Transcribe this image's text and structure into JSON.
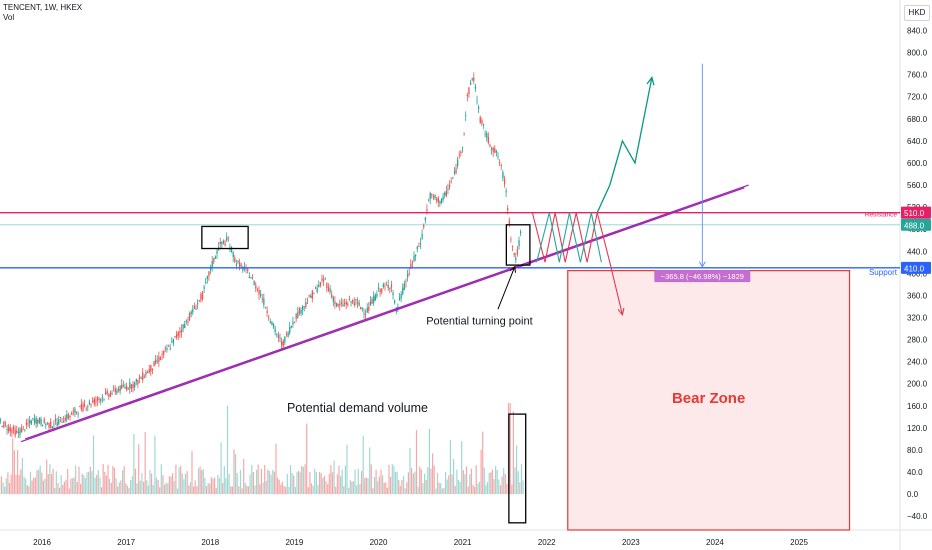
{
  "header": {
    "symbol_line": "TENCENT, 1W, HKEX",
    "sub_line": "Vol"
  },
  "currency": "HKD",
  "chart_data": {
    "type": "candlestick",
    "symbol": "TENCENT",
    "interval": "1W",
    "exchange": "HKEX",
    "x": {
      "range": [
        2015.5,
        2026.2
      ],
      "tick_labels": [
        "2016",
        "2017",
        "2018",
        "2019",
        "2020",
        "2021",
        "2022",
        "2023",
        "2024",
        "2025"
      ],
      "tick_values": [
        2016,
        2017,
        2018,
        2019,
        2020,
        2021,
        2022,
        2023,
        2024,
        2025
      ]
    },
    "y": {
      "range": [
        -65,
        850
      ],
      "tick_values": [
        -40,
        0,
        40,
        80,
        120,
        160,
        200,
        240,
        280,
        320,
        360,
        400,
        440,
        480,
        520,
        560,
        600,
        640,
        680,
        720,
        760,
        800,
        840
      ],
      "tick_labels": [
        "−40.0",
        "0.0",
        "40.0",
        "80.0",
        "120.0",
        "160.0",
        "200.0",
        "240.0",
        "280.0",
        "320.0",
        "360.0",
        "400.0",
        "440.0",
        "480.0",
        "520.0",
        "560.0",
        "600.0",
        "640.0",
        "680.0",
        "720.0",
        "760.0",
        "800.0",
        "840.0"
      ]
    },
    "price_path": [
      [
        2015.5,
        130
      ],
      [
        2015.7,
        110
      ],
      [
        2015.9,
        135
      ],
      [
        2016.1,
        125
      ],
      [
        2016.3,
        140
      ],
      [
        2016.5,
        160
      ],
      [
        2016.7,
        175
      ],
      [
        2016.9,
        190
      ],
      [
        2017.1,
        200
      ],
      [
        2017.3,
        230
      ],
      [
        2017.5,
        265
      ],
      [
        2017.7,
        310
      ],
      [
        2017.9,
        360
      ],
      [
        2018.0,
        410
      ],
      [
        2018.1,
        450
      ],
      [
        2018.2,
        460
      ],
      [
        2018.3,
        420
      ],
      [
        2018.45,
        400
      ],
      [
        2018.6,
        360
      ],
      [
        2018.75,
        300
      ],
      [
        2018.85,
        270
      ],
      [
        2019.0,
        320
      ],
      [
        2019.2,
        360
      ],
      [
        2019.35,
        390
      ],
      [
        2019.5,
        340
      ],
      [
        2019.7,
        350
      ],
      [
        2019.85,
        330
      ],
      [
        2020.0,
        370
      ],
      [
        2020.15,
        380
      ],
      [
        2020.2,
        330
      ],
      [
        2020.35,
        400
      ],
      [
        2020.5,
        460
      ],
      [
        2020.6,
        540
      ],
      [
        2020.75,
        530
      ],
      [
        2020.9,
        580
      ],
      [
        2021.0,
        640
      ],
      [
        2021.05,
        720
      ],
      [
        2021.12,
        760
      ],
      [
        2021.2,
        680
      ],
      [
        2021.3,
        640
      ],
      [
        2021.42,
        610
      ],
      [
        2021.5,
        560
      ],
      [
        2021.58,
        450
      ],
      [
        2021.63,
        425
      ],
      [
        2021.68,
        470
      ]
    ],
    "volume": {
      "note": "volume bars drawn in lower pane, baseline at 0",
      "spikes": [
        [
          2018.2,
          160
        ],
        [
          2021.55,
          165
        ],
        [
          2021.6,
          150
        ]
      ]
    },
    "horizontal_levels": [
      {
        "name": "Resistance",
        "value": 510.0,
        "color": "#e91e63",
        "price_label": "510.0"
      },
      {
        "name": "",
        "value": 488.0,
        "color": "#26a69a",
        "price_label": "488.0"
      },
      {
        "name": "Support",
        "value": 410.0,
        "color": "#2962ff",
        "price_label": "410.0"
      }
    ],
    "trendlines": [
      {
        "points": [
          [
            2015.75,
            95
          ],
          [
            2024.35,
            555
          ]
        ],
        "color": "#9c27b0"
      },
      {
        "points": [
          [
            2015.8,
            100
          ],
          [
            2024.4,
            560
          ]
        ],
        "color": "#9c27b0"
      }
    ],
    "projection": {
      "zigzag": [
        [
          2021.83,
          510
        ],
        [
          2021.98,
          420
        ],
        [
          2022.1,
          510
        ],
        [
          2022.22,
          420
        ],
        [
          2022.35,
          510
        ],
        [
          2022.48,
          420
        ],
        [
          2022.6,
          510
        ]
      ],
      "bull_path": [
        [
          2022.6,
          510
        ],
        [
          2022.75,
          560
        ],
        [
          2022.9,
          640
        ],
        [
          2023.05,
          600
        ],
        [
          2023.25,
          755
        ]
      ],
      "bear_path": [
        [
          2022.6,
          510
        ],
        [
          2022.75,
          420
        ],
        [
          2022.9,
          325
        ]
      ]
    },
    "measure_label": "−365.8 (−46.98%) −1829",
    "measure_arrow": {
      "x": 2023.85,
      "y_from": 780,
      "y_to": 412
    },
    "bear_zone": {
      "label": "Bear Zone",
      "x_from": 2022.25,
      "x_to": 2025.6,
      "y_from": 405,
      "y_to": -65
    },
    "annotations": [
      {
        "text": "Potential turning point",
        "at": [
          2021.2,
          315
        ]
      },
      {
        "text": "Potential demand volume",
        "at": [
          2019.75,
          158
        ]
      }
    ],
    "highlight_boxes": [
      {
        "x_from": 2017.9,
        "x_to": 2018.45,
        "y_from": 445,
        "y_to": 485
      },
      {
        "x_from": 2021.52,
        "x_to": 2021.8,
        "y_from": 415,
        "y_to": 488
      },
      {
        "x_from": 2021.55,
        "x_to": 2021.75,
        "y_from": -52,
        "y_to": 145
      }
    ],
    "grid": false
  }
}
